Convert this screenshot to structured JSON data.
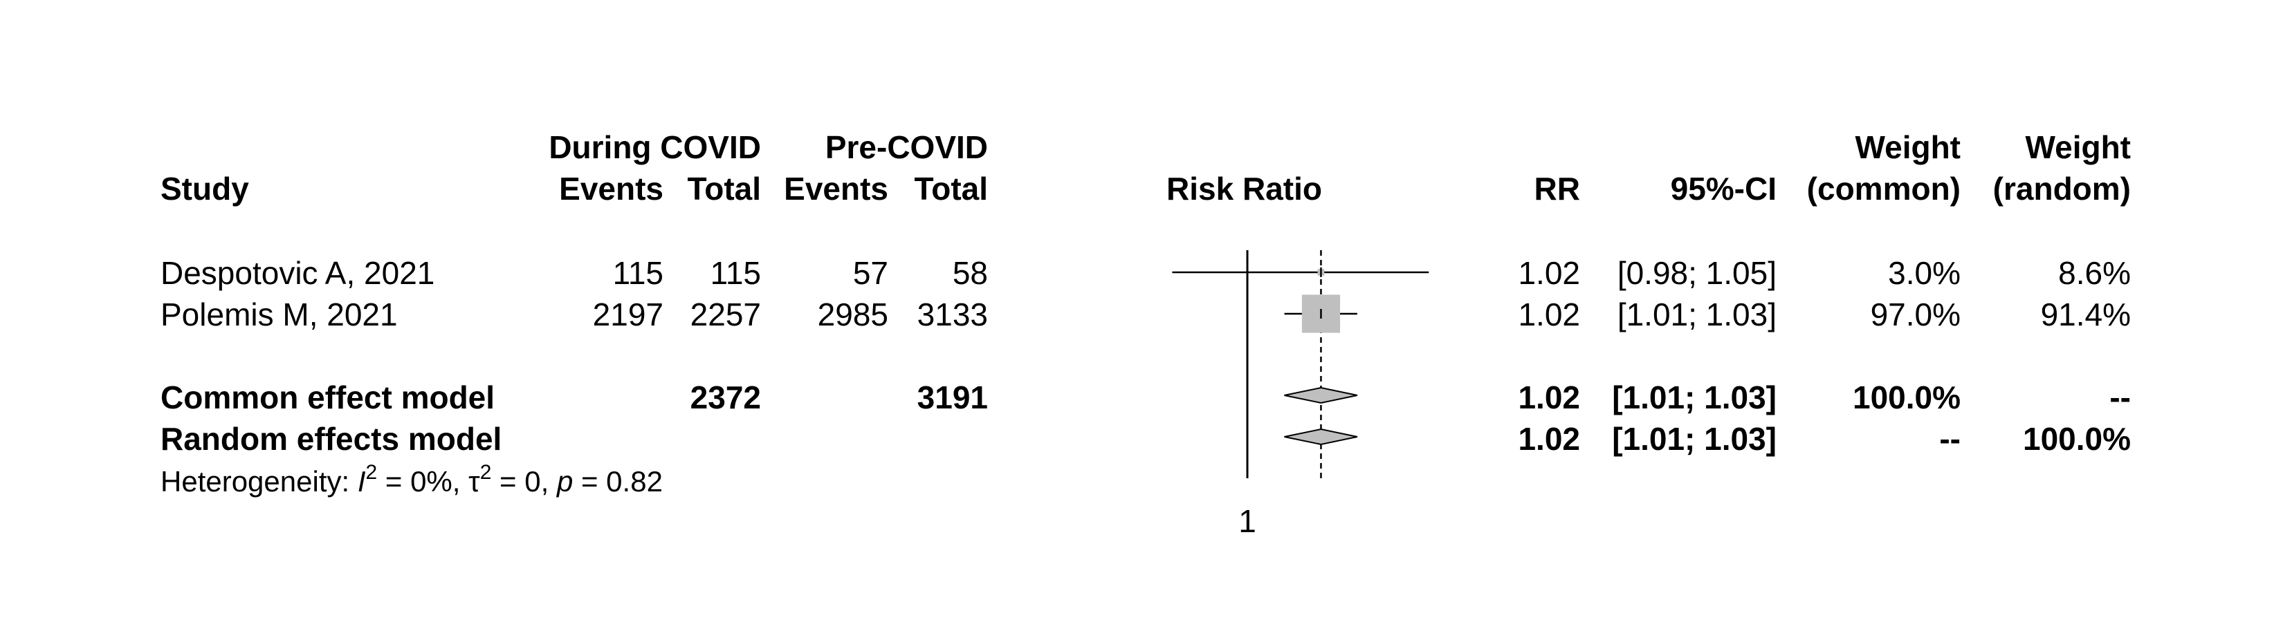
{
  "headers": {
    "study": "Study",
    "group_exp": "During COVID",
    "group_ctrl": "Pre-COVID",
    "events": "Events",
    "total": "Total",
    "risk_ratio": "Risk Ratio",
    "rr": "RR",
    "ci": "95%-CI",
    "weight": "Weight",
    "weight_common": "(common)",
    "weight_random": "(random)"
  },
  "studies": [
    {
      "name": "Despotovic A, 2021",
      "exp_events": "115",
      "exp_total": "115",
      "ctrl_events": "57",
      "ctrl_total": "58",
      "rr": "1.02",
      "ci": "[0.98; 1.05]",
      "w_common": "3.0%",
      "w_random": "8.6%"
    },
    {
      "name": "Polemis M, 2021",
      "exp_events": "2197",
      "exp_total": "2257",
      "ctrl_events": "2985",
      "ctrl_total": "3133",
      "rr": "1.02",
      "ci": "[1.01; 1.03]",
      "w_common": "97.0%",
      "w_random": "91.4%"
    }
  ],
  "pooled": [
    {
      "name": "Common effect model",
      "exp_total": "2372",
      "ctrl_total": "3191",
      "rr": "1.02",
      "ci": "[1.01; 1.03]",
      "w_common": "100.0%",
      "w_random": "--"
    },
    {
      "name": "Random effects model",
      "exp_total": "",
      "ctrl_total": "",
      "rr": "1.02",
      "ci": "[1.01; 1.03]",
      "w_common": "--",
      "w_random": "100.0%"
    }
  ],
  "heterogeneity": {
    "prefix": "Heterogeneity: ",
    "i_symbol": "I",
    "i_exp": "2",
    "i_value": " = 0%, ",
    "tau_symbol": "τ",
    "tau_exp": "2",
    "tau_value": " = 0, ",
    "p_symbol": "p",
    "p_value": " = 0.82"
  },
  "chart_data": {
    "type": "forest",
    "measure": "Risk Ratio",
    "reference_line": 1,
    "x_tick_labels": [
      "1"
    ],
    "studies": [
      {
        "name": "Despotovic A, 2021",
        "rr": 1.02,
        "lower": 0.98,
        "upper": 1.05,
        "weight_common": 3.0,
        "weight_random": 8.6
      },
      {
        "name": "Polemis M, 2021",
        "rr": 1.02,
        "lower": 1.01,
        "upper": 1.03,
        "weight_common": 97.0,
        "weight_random": 91.4
      }
    ],
    "pooled": [
      {
        "name": "Common effect model",
        "rr": 1.02,
        "lower": 1.01,
        "upper": 1.03
      },
      {
        "name": "Random effects model",
        "rr": 1.02,
        "lower": 1.01,
        "upper": 1.03
      }
    ],
    "colors": {
      "square": "#bfbfbf",
      "diamond": "#bfbfbf",
      "line": "#000000"
    }
  }
}
